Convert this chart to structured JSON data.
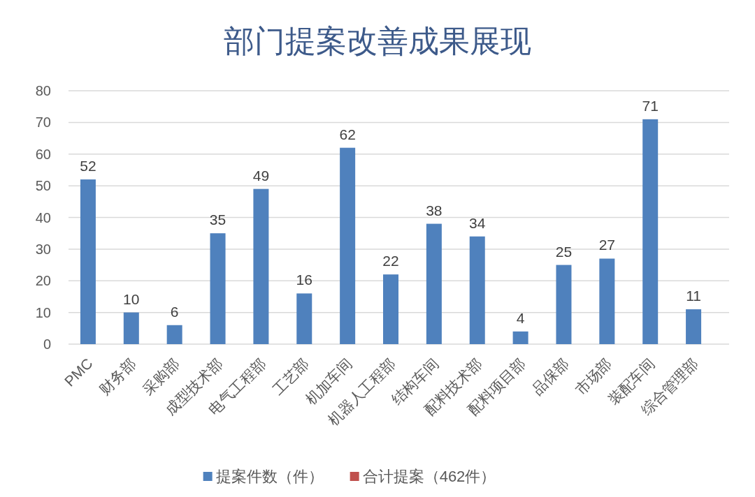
{
  "chart_data": {
    "type": "bar",
    "title": "部门提案改善成果展现",
    "categories": [
      "PMC",
      "财务部",
      "采购部",
      "成型技术部",
      "电气工程部",
      "工艺部",
      "机加车间",
      "机器人工程部",
      "结构车间",
      "配料技术部",
      "配料项目部",
      "品保部",
      "市场部",
      "装配车间",
      "综合管理部"
    ],
    "series": [
      {
        "name": "提案件数（件）",
        "color": "#4f81bd",
        "values": [
          52,
          10,
          6,
          35,
          49,
          16,
          62,
          22,
          38,
          34,
          4,
          25,
          27,
          71,
          11
        ]
      },
      {
        "name": "合计提案（462件）",
        "color": "#c0504d",
        "values": [
          null,
          null,
          null,
          null,
          null,
          null,
          null,
          null,
          null,
          null,
          null,
          null,
          null,
          null,
          null
        ]
      }
    ],
    "ylim": [
      0,
      80
    ],
    "yticks": [
      0,
      10,
      20,
      30,
      40,
      50,
      60,
      70,
      80
    ],
    "grid": "y",
    "legend": "bottom",
    "data_labels": true
  }
}
